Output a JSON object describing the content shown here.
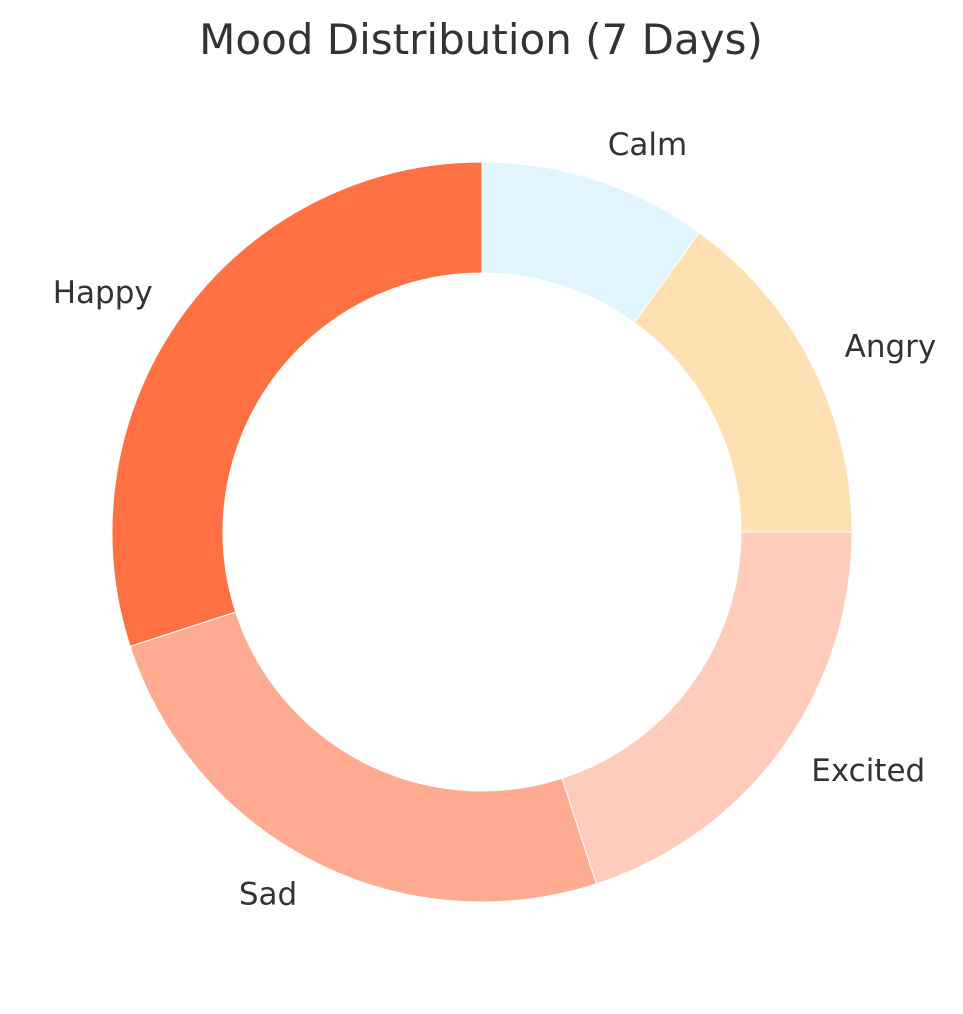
{
  "chart_data": {
    "type": "pie",
    "title": "Mood Distribution (7 Days)",
    "donut": true,
    "slices": [
      {
        "label": "Calm",
        "value": 10,
        "color": "#E1F5FE"
      },
      {
        "label": "Angry",
        "value": 15,
        "color": "#FFE0B2"
      },
      {
        "label": "Excited",
        "value": 20,
        "color": "#FFCCBC"
      },
      {
        "label": "Sad",
        "value": 25,
        "color": "#FFAB91"
      },
      {
        "label": "Happy",
        "value": 30,
        "color": "#FF7043"
      }
    ]
  }
}
